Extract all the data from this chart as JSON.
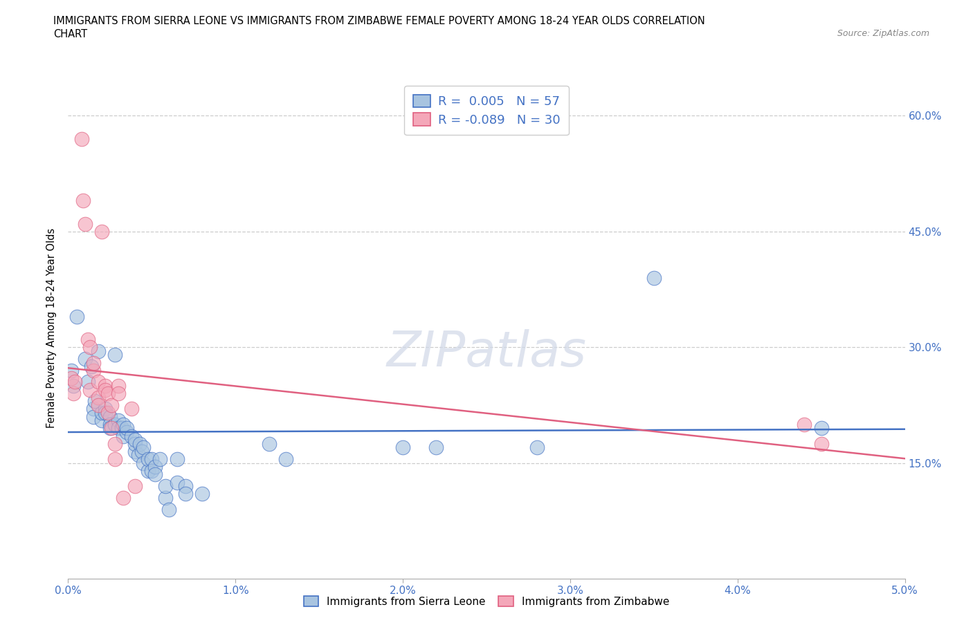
{
  "title_line1": "IMMIGRANTS FROM SIERRA LEONE VS IMMIGRANTS FROM ZIMBABWE FEMALE POVERTY AMONG 18-24 YEAR OLDS CORRELATION",
  "title_line2": "CHART",
  "source_text": "Source: ZipAtlas.com",
  "ylabel": "Female Poverty Among 18-24 Year Olds",
  "xlim": [
    0.0,
    0.05
  ],
  "ylim": [
    0.0,
    0.65
  ],
  "xtick_vals": [
    0.0,
    0.01,
    0.02,
    0.03,
    0.04,
    0.05
  ],
  "xtick_labels": [
    "0.0%",
    "1.0%",
    "2.0%",
    "3.0%",
    "4.0%",
    "5.0%"
  ],
  "ytick_labels": [
    "15.0%",
    "30.0%",
    "45.0%",
    "60.0%"
  ],
  "ytick_values": [
    0.15,
    0.3,
    0.45,
    0.6
  ],
  "watermark": "ZIPatlas",
  "sierra_leone_color": "#a8c4e0",
  "zimbabwe_color": "#f4a7b9",
  "sierra_leone_line_color": "#4472c4",
  "zimbabwe_line_color": "#e06080",
  "R_sierra": 0.005,
  "N_sierra": 57,
  "R_zimbabwe": -0.089,
  "N_zimbabwe": 30,
  "sierra_leone_points": [
    [
      0.0002,
      0.27
    ],
    [
      0.0003,
      0.25
    ],
    [
      0.0005,
      0.34
    ],
    [
      0.001,
      0.285
    ],
    [
      0.0012,
      0.255
    ],
    [
      0.0014,
      0.275
    ],
    [
      0.0015,
      0.22
    ],
    [
      0.0015,
      0.21
    ],
    [
      0.0016,
      0.23
    ],
    [
      0.0018,
      0.295
    ],
    [
      0.002,
      0.205
    ],
    [
      0.002,
      0.215
    ],
    [
      0.0022,
      0.22
    ],
    [
      0.0022,
      0.215
    ],
    [
      0.0025,
      0.21
    ],
    [
      0.0025,
      0.2
    ],
    [
      0.0025,
      0.195
    ],
    [
      0.0028,
      0.29
    ],
    [
      0.0028,
      0.2
    ],
    [
      0.003,
      0.205
    ],
    [
      0.003,
      0.195
    ],
    [
      0.0032,
      0.195
    ],
    [
      0.0033,
      0.185
    ],
    [
      0.0033,
      0.2
    ],
    [
      0.0035,
      0.19
    ],
    [
      0.0035,
      0.195
    ],
    [
      0.0038,
      0.185
    ],
    [
      0.004,
      0.165
    ],
    [
      0.004,
      0.175
    ],
    [
      0.004,
      0.18
    ],
    [
      0.0042,
      0.16
    ],
    [
      0.0043,
      0.175
    ],
    [
      0.0044,
      0.165
    ],
    [
      0.0045,
      0.15
    ],
    [
      0.0045,
      0.17
    ],
    [
      0.0048,
      0.14
    ],
    [
      0.0048,
      0.155
    ],
    [
      0.005,
      0.155
    ],
    [
      0.005,
      0.14
    ],
    [
      0.0052,
      0.145
    ],
    [
      0.0052,
      0.135
    ],
    [
      0.0055,
      0.155
    ],
    [
      0.0058,
      0.105
    ],
    [
      0.0058,
      0.12
    ],
    [
      0.006,
      0.09
    ],
    [
      0.0065,
      0.155
    ],
    [
      0.0065,
      0.125
    ],
    [
      0.007,
      0.12
    ],
    [
      0.007,
      0.11
    ],
    [
      0.008,
      0.11
    ],
    [
      0.012,
      0.175
    ],
    [
      0.013,
      0.155
    ],
    [
      0.02,
      0.17
    ],
    [
      0.022,
      0.17
    ],
    [
      0.028,
      0.17
    ],
    [
      0.035,
      0.39
    ],
    [
      0.045,
      0.195
    ]
  ],
  "zimbabwe_points": [
    [
      0.0002,
      0.26
    ],
    [
      0.0003,
      0.24
    ],
    [
      0.0004,
      0.255
    ],
    [
      0.0008,
      0.57
    ],
    [
      0.0009,
      0.49
    ],
    [
      0.001,
      0.46
    ],
    [
      0.0012,
      0.31
    ],
    [
      0.0013,
      0.3
    ],
    [
      0.0013,
      0.245
    ],
    [
      0.0015,
      0.27
    ],
    [
      0.0015,
      0.28
    ],
    [
      0.0018,
      0.255
    ],
    [
      0.0018,
      0.235
    ],
    [
      0.0018,
      0.225
    ],
    [
      0.002,
      0.45
    ],
    [
      0.0022,
      0.25
    ],
    [
      0.0022,
      0.245
    ],
    [
      0.0024,
      0.24
    ],
    [
      0.0024,
      0.215
    ],
    [
      0.0026,
      0.225
    ],
    [
      0.0026,
      0.195
    ],
    [
      0.0028,
      0.175
    ],
    [
      0.0028,
      0.155
    ],
    [
      0.003,
      0.25
    ],
    [
      0.003,
      0.24
    ],
    [
      0.0033,
      0.105
    ],
    [
      0.0038,
      0.22
    ],
    [
      0.004,
      0.12
    ],
    [
      0.044,
      0.2
    ],
    [
      0.045,
      0.175
    ]
  ]
}
